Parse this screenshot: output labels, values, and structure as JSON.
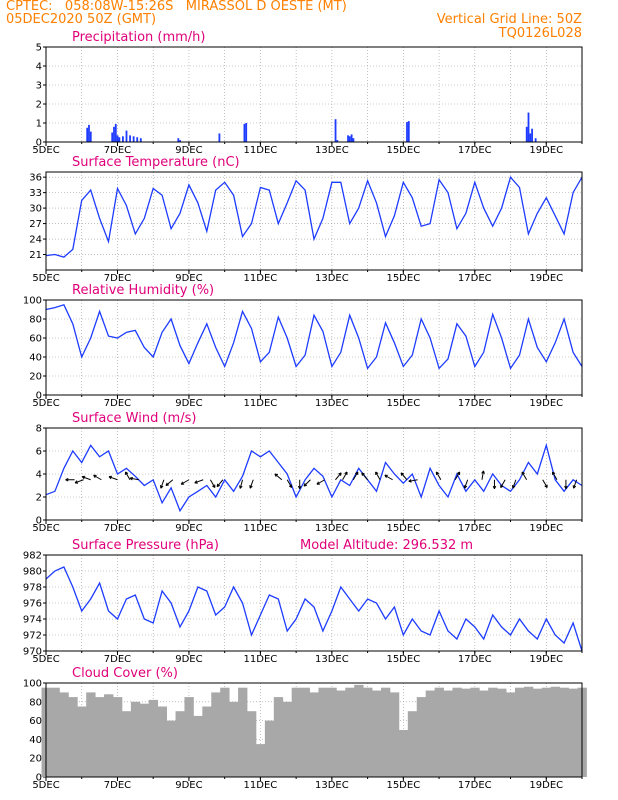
{
  "header": {
    "line1": "CPTEC:   058:08W-15:26S   MIRASSOL D OESTE (MT)",
    "line2_left": "05DEC2020 50Z (GMT)",
    "line2_right": "Vertical Grid Line: 50Z",
    "line3_right": "TQ0126L028"
  },
  "colors": {
    "header": "#ff8000",
    "title": "#e0007a",
    "line": "#1e3cff",
    "cloud": "#a8a8a8",
    "arrow": "#000000"
  },
  "chart_data": [
    {
      "type": "bar",
      "title": "Precipitation (mm/h)",
      "ylim": [
        0,
        5
      ],
      "yticks": [
        "0",
        "1",
        "2",
        "3",
        "4",
        "5"
      ],
      "xticks": [
        "5DEC",
        "7DEC",
        "9DEC",
        "11DEC",
        "13DEC",
        "15DEC",
        "17DEC",
        "19DEC"
      ],
      "x_days": [
        5.0,
        15.0
      ],
      "series": [
        {
          "x_day": [
            6.15,
            6.2,
            6.25,
            6.85,
            6.9,
            6.95,
            7.0,
            7.05,
            7.15,
            7.25,
            7.35,
            7.45,
            7.55,
            7.65,
            8.7,
            8.75,
            9.85,
            10.55,
            10.6,
            13.1,
            13.15,
            13.45,
            13.5,
            13.55,
            13.6,
            15.1,
            15.15,
            18.45,
            18.5,
            18.55,
            18.6,
            18.7
          ],
          "values": [
            0.75,
            0.9,
            0.55,
            0.5,
            0.8,
            0.95,
            0.35,
            0.25,
            0.3,
            0.6,
            0.35,
            0.3,
            0.25,
            0.2,
            0.2,
            0.1,
            0.45,
            0.95,
            1.0,
            1.2,
            0.1,
            0.35,
            0.3,
            0.4,
            0.2,
            1.05,
            1.1,
            0.8,
            1.55,
            0.45,
            0.7,
            0.2
          ]
        }
      ]
    },
    {
      "type": "line",
      "title": "Surface Temperature (nC)",
      "ylim": [
        18,
        37
      ],
      "yticks": [
        "21",
        "24",
        "27",
        "30",
        "33",
        "36"
      ],
      "xticks": [
        "5DEC",
        "7DEC",
        "9DEC",
        "11DEC",
        "13DEC",
        "15DEC",
        "17DEC",
        "19DEC"
      ],
      "series": [
        {
          "x_day": [
            5.0,
            5.25,
            5.5,
            5.75,
            6.0,
            6.25,
            6.5,
            6.75,
            7.0,
            7.25,
            7.5,
            7.75,
            8.0,
            8.25,
            8.5,
            8.75,
            9.0,
            9.25,
            9.5,
            9.75,
            10.0,
            10.25,
            10.5,
            10.75,
            11.0,
            11.25,
            11.5,
            11.75,
            12.0,
            12.25,
            12.5,
            12.75,
            13.0,
            13.25,
            13.5,
            13.75,
            14.0,
            14.25,
            14.5,
            14.75,
            15.0,
            15.25,
            15.5,
            15.75,
            16.0,
            16.25,
            16.5,
            16.75,
            17.0,
            17.25,
            17.5,
            17.75,
            18.0,
            18.25,
            18.5,
            18.75,
            19.0,
            19.25,
            19.5,
            19.75,
            20.0
          ],
          "values": [
            20.8,
            21.0,
            20.5,
            22.0,
            31.5,
            33.5,
            28.0,
            23.5,
            33.8,
            30.5,
            25.0,
            28.0,
            33.8,
            32.5,
            26.0,
            29.0,
            34.5,
            31.0,
            25.5,
            33.5,
            35.0,
            32.5,
            24.5,
            27.0,
            34.0,
            33.5,
            27.0,
            31.0,
            35.3,
            33.5,
            24.0,
            28.0,
            35.0,
            35.0,
            27.0,
            30.0,
            35.3,
            31.0,
            24.5,
            28.5,
            35.0,
            32.0,
            26.5,
            27.0,
            35.5,
            33.0,
            26.0,
            29.0,
            35.0,
            30.0,
            26.5,
            30.0,
            36.0,
            34.0,
            25.0,
            29.0,
            32.0,
            28.5,
            25.0,
            33.0,
            36.0
          ]
        }
      ]
    },
    {
      "type": "line",
      "title": "Relative Humidity (%)",
      "ylim": [
        0,
        100
      ],
      "yticks": [
        "0",
        "20",
        "40",
        "60",
        "80",
        "100"
      ],
      "xticks": [
        "5DEC",
        "7DEC",
        "9DEC",
        "11DEC",
        "13DEC",
        "15DEC",
        "17DEC",
        "19DEC"
      ],
      "series": [
        {
          "x_day": [
            5.0,
            5.25,
            5.5,
            5.75,
            6.0,
            6.25,
            6.5,
            6.75,
            7.0,
            7.25,
            7.5,
            7.75,
            8.0,
            8.25,
            8.5,
            8.75,
            9.0,
            9.25,
            9.5,
            9.75,
            10.0,
            10.25,
            10.5,
            10.75,
            11.0,
            11.25,
            11.5,
            11.75,
            12.0,
            12.25,
            12.5,
            12.75,
            13.0,
            13.25,
            13.5,
            13.75,
            14.0,
            14.25,
            14.5,
            14.75,
            15.0,
            15.25,
            15.5,
            15.75,
            16.0,
            16.25,
            16.5,
            16.75,
            17.0,
            17.25,
            17.5,
            17.75,
            18.0,
            18.25,
            18.5,
            18.75,
            19.0,
            19.25,
            19.5,
            19.75,
            20.0
          ],
          "values": [
            90.0,
            92.0,
            95.0,
            75.0,
            40.0,
            60.0,
            88.0,
            62.0,
            60.0,
            66.0,
            68.0,
            50.0,
            40.0,
            66.0,
            80.0,
            52.0,
            33.0,
            55.0,
            75.0,
            50.0,
            30.0,
            55.0,
            88.0,
            70.0,
            35.0,
            45.0,
            82.0,
            60.0,
            30.0,
            42.0,
            84.0,
            67.0,
            30.0,
            45.0,
            84.0,
            60.0,
            28.0,
            40.0,
            76.0,
            55.0,
            30.0,
            42.0,
            80.0,
            60.0,
            28.0,
            38.0,
            75.0,
            62.0,
            30.0,
            45.0,
            85.0,
            60.0,
            28.0,
            42.0,
            80.0,
            50.0,
            35.0,
            55.0,
            80.0,
            45.0,
            30.0
          ]
        }
      ]
    },
    {
      "type": "line",
      "title": "Surface Wind (m/s)",
      "ylim": [
        0,
        8
      ],
      "yticks": [
        "0",
        "2",
        "4",
        "6",
        "8"
      ],
      "xticks": [
        "5DEC",
        "7DEC",
        "9DEC",
        "11DEC",
        "13DEC",
        "15DEC",
        "17DEC",
        "19DEC"
      ],
      "series": [
        {
          "x_day": [
            5.0,
            5.25,
            5.5,
            5.75,
            6.0,
            6.25,
            6.5,
            6.75,
            7.0,
            7.25,
            7.5,
            7.75,
            8.0,
            8.25,
            8.5,
            8.75,
            9.0,
            9.25,
            9.5,
            9.75,
            10.0,
            10.25,
            10.5,
            10.75,
            11.0,
            11.25,
            11.5,
            11.75,
            12.0,
            12.25,
            12.5,
            12.75,
            13.0,
            13.25,
            13.5,
            13.75,
            14.0,
            14.25,
            14.5,
            14.75,
            15.0,
            15.25,
            15.5,
            15.75,
            16.0,
            16.25,
            16.5,
            16.75,
            17.0,
            17.25,
            17.5,
            17.75,
            18.0,
            18.25,
            18.5,
            18.75,
            19.0,
            19.25,
            19.5,
            19.75,
            20.0
          ],
          "values": [
            2.2,
            2.5,
            4.5,
            6.0,
            5.0,
            6.5,
            5.5,
            6.0,
            4.0,
            4.5,
            3.8,
            3.0,
            3.5,
            1.5,
            2.8,
            0.8,
            2.0,
            2.5,
            3.0,
            2.0,
            3.5,
            2.5,
            3.8,
            6.0,
            5.5,
            6.0,
            5.0,
            4.0,
            2.0,
            3.5,
            4.5,
            3.8,
            2.0,
            3.5,
            3.0,
            4.5,
            3.5,
            2.5,
            5.0,
            4.0,
            3.2,
            4.0,
            2.0,
            4.5,
            3.0,
            2.0,
            4.0,
            2.5,
            3.5,
            2.5,
            4.0,
            3.0,
            2.5,
            3.5,
            5.0,
            4.0,
            6.5,
            3.5,
            2.5,
            3.5,
            3.0
          ]
        }
      ],
      "wind_arrows_day": [
        5.8,
        6.05,
        6.25,
        6.55,
        7.0,
        7.35,
        7.6,
        8.3,
        8.55,
        9.0,
        9.4,
        9.6,
        9.95,
        10.5,
        10.8,
        11.6,
        11.75,
        12.1,
        12.4,
        12.8,
        13.1,
        13.3,
        13.6,
        14.0,
        14.35,
        14.7,
        15.1,
        15.4,
        16.05,
        16.45,
        16.8,
        17.2,
        17.55,
        17.85,
        18.15,
        18.45,
        18.9,
        19.3,
        19.55,
        19.85
      ],
      "wind_arrows_deg": [
        270,
        250,
        290,
        300,
        290,
        330,
        280,
        200,
        230,
        240,
        250,
        150,
        220,
        195,
        200,
        310,
        150,
        180,
        225,
        240,
        40,
        30,
        30,
        320,
        330,
        300,
        320,
        260,
        330,
        30,
        200,
        10,
        180,
        210,
        200,
        330,
        150,
        330,
        180,
        200
      ]
    },
    {
      "type": "line",
      "title": "Surface Pressure (hPa)",
      "model_altitude": "Model Altitude: 296.532 m",
      "ylim": [
        970,
        982
      ],
      "yticks": [
        "970",
        "972",
        "974",
        "976",
        "978",
        "980",
        "982"
      ],
      "xticks": [
        "5DEC",
        "7DEC",
        "9DEC",
        "11DEC",
        "13DEC",
        "15DEC",
        "17DEC",
        "19DEC"
      ],
      "series": [
        {
          "x_day": [
            5.0,
            5.25,
            5.5,
            5.75,
            6.0,
            6.25,
            6.5,
            6.75,
            7.0,
            7.25,
            7.5,
            7.75,
            8.0,
            8.25,
            8.5,
            8.75,
            9.0,
            9.25,
            9.5,
            9.75,
            10.0,
            10.25,
            10.5,
            10.75,
            11.0,
            11.25,
            11.5,
            11.75,
            12.0,
            12.25,
            12.5,
            12.75,
            13.0,
            13.25,
            13.5,
            13.75,
            14.0,
            14.25,
            14.5,
            14.75,
            15.0,
            15.25,
            15.5,
            15.75,
            16.0,
            16.25,
            16.5,
            16.75,
            17.0,
            17.25,
            17.5,
            17.75,
            18.0,
            18.25,
            18.5,
            18.75,
            19.0,
            19.25,
            19.5,
            19.75,
            20.0
          ],
          "values": [
            979.0,
            980.0,
            980.5,
            978.0,
            975.0,
            976.5,
            978.5,
            975.0,
            974.0,
            976.5,
            977.0,
            974.0,
            973.5,
            977.5,
            976.0,
            973.0,
            975.0,
            978.0,
            977.5,
            974.5,
            975.5,
            978.0,
            976.0,
            972.0,
            974.5,
            977.0,
            976.5,
            972.5,
            974.0,
            976.5,
            975.5,
            972.5,
            975.0,
            978.0,
            976.5,
            975.0,
            976.5,
            976.0,
            974.0,
            975.5,
            972.0,
            974.0,
            972.5,
            972.0,
            975.0,
            972.5,
            971.5,
            974.0,
            973.0,
            971.5,
            974.5,
            973.0,
            972.0,
            974.0,
            972.5,
            971.5,
            974.0,
            972.0,
            971.0,
            973.5,
            970.0
          ]
        }
      ]
    },
    {
      "type": "area",
      "title": "Cloud Cover (%)",
      "ylim": [
        0,
        100
      ],
      "yticks": [
        "0",
        "20",
        "40",
        "60",
        "80",
        "100"
      ],
      "xticks": [
        "5DEC",
        "7DEC",
        "9DEC",
        "11DEC",
        "13DEC",
        "15DEC",
        "17DEC",
        "19DEC"
      ],
      "series": [
        {
          "x_day": [
            5.0,
            5.25,
            5.5,
            5.75,
            6.0,
            6.25,
            6.5,
            6.75,
            7.0,
            7.25,
            7.5,
            7.75,
            8.0,
            8.25,
            8.5,
            8.75,
            9.0,
            9.25,
            9.5,
            9.75,
            10.0,
            10.25,
            10.5,
            10.75,
            11.0,
            11.25,
            11.5,
            11.75,
            12.0,
            12.25,
            12.5,
            12.75,
            13.0,
            13.25,
            13.5,
            13.75,
            14.0,
            14.25,
            14.5,
            14.75,
            15.0,
            15.25,
            15.5,
            15.75,
            16.0,
            16.25,
            16.5,
            16.75,
            17.0,
            17.25,
            17.5,
            17.75,
            18.0,
            18.25,
            18.5,
            18.75,
            19.0,
            19.25,
            19.5,
            19.75,
            20.0
          ],
          "values": [
            95.0,
            95.0,
            90.0,
            85.0,
            75.0,
            90.0,
            85.0,
            88.0,
            85.0,
            70.0,
            80.0,
            78.0,
            82.0,
            75.0,
            60.0,
            70.0,
            85.0,
            65.0,
            75.0,
            90.0,
            95.0,
            80.0,
            95.0,
            70.0,
            35.0,
            60.0,
            85.0,
            80.0,
            95.0,
            95.0,
            90.0,
            95.0,
            95.0,
            92.0,
            95.0,
            98.0,
            95.0,
            92.0,
            95.0,
            90.0,
            50.0,
            70.0,
            85.0,
            92.0,
            95.0,
            92.0,
            95.0,
            94.0,
            95.0,
            92.0,
            95.0,
            94.0,
            90.0,
            95.0,
            96.0,
            94.0,
            95.0,
            96.0,
            95.0,
            94.0,
            95.0
          ]
        }
      ]
    }
  ]
}
